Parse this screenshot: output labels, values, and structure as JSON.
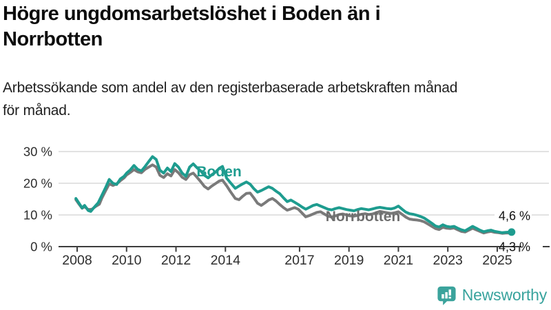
{
  "page": {
    "title_lines": [
      "Högre ungdomsarbetslöshet i Boden än i",
      "Norrbotten"
    ],
    "subtitle_lines": [
      "Arbetssökande som andel av den registerbaserade arbetskraften månad",
      "för månad."
    ]
  },
  "colors": {
    "boden": "#1e9c8f",
    "norrbotten": "#7a7a7a",
    "norrbotten_label": "#6e6e6e",
    "gridline": "#d9d9d9",
    "axis": "#3d3d3d",
    "annotation_text": "#111111",
    "brand_teal": "#38a39d"
  },
  "footer": {
    "brand": "Newsworthy",
    "logo_icon": "newsworthy-speech-bubble-chart-icon"
  },
  "chart_data": {
    "type": "line",
    "title": "Högre ungdomsarbetslöshet i Boden än i Norrbotten",
    "subtitle": "Arbetssökande som andel av den registerbaserade arbetskraften månad för månad.",
    "xlabel": "",
    "ylabel": "",
    "grid": "horizontal",
    "legend_position": "inline-labels",
    "xlim": [
      2007.25,
      2026.1
    ],
    "ylim": [
      0,
      32
    ],
    "y_ticks": [
      {
        "label": "0 %",
        "value": 0
      },
      {
        "label": "10 %",
        "value": 10
      },
      {
        "label": "20 %",
        "value": 20
      },
      {
        "label": "30 %",
        "value": 30
      }
    ],
    "x_ticks": [
      {
        "label": "2008",
        "year": 2008
      },
      {
        "label": "2010",
        "year": 2010
      },
      {
        "label": "2012",
        "year": 2012
      },
      {
        "label": "2014",
        "year": 2014
      },
      {
        "label": "2017",
        "year": 2017
      },
      {
        "label": "2019",
        "year": 2019
      },
      {
        "label": "2021",
        "year": 2021
      },
      {
        "label": "2023",
        "year": 2023
      },
      {
        "label": "2025",
        "year": 2025
      },
      {
        "label": "",
        "year": 2025.9
      }
    ],
    "series_labels": [
      {
        "text": "Boden",
        "series": "Boden"
      },
      {
        "text": "Norrbotten",
        "series": "Norrbotten"
      }
    ],
    "end_labels": [
      {
        "text": "4,6 %",
        "series": "Boden",
        "value": 4.6
      },
      {
        "text": "4,3 %",
        "series": "Norrbotten",
        "value": 4.3
      }
    ],
    "series": [
      {
        "name": "Norrbotten",
        "color": "#7a7a7a",
        "end_dot": false,
        "points": [
          [
            2007.95,
            14.8
          ],
          [
            2008.05,
            13.7
          ],
          [
            2008.2,
            12.1
          ],
          [
            2008.3,
            12.6
          ],
          [
            2008.45,
            11.7
          ],
          [
            2008.6,
            11.8
          ],
          [
            2008.75,
            12.7
          ],
          [
            2008.9,
            13.4
          ],
          [
            2009.0,
            15.3
          ],
          [
            2009.15,
            17.6
          ],
          [
            2009.3,
            19.8
          ],
          [
            2009.45,
            19.3
          ],
          [
            2009.6,
            19.8
          ],
          [
            2009.75,
            20.8
          ],
          [
            2009.9,
            21.7
          ],
          [
            2010.0,
            22.6
          ],
          [
            2010.15,
            23.4
          ],
          [
            2010.3,
            24.3
          ],
          [
            2010.45,
            23.6
          ],
          [
            2010.6,
            23.3
          ],
          [
            2010.75,
            24.4
          ],
          [
            2010.9,
            25.1
          ],
          [
            2011.05,
            25.8
          ],
          [
            2011.2,
            25.1
          ],
          [
            2011.35,
            22.5
          ],
          [
            2011.5,
            21.8
          ],
          [
            2011.65,
            23.0
          ],
          [
            2011.8,
            22.3
          ],
          [
            2011.95,
            24.3
          ],
          [
            2012.1,
            23.3
          ],
          [
            2012.25,
            21.9
          ],
          [
            2012.4,
            21.2
          ],
          [
            2012.55,
            22.7
          ],
          [
            2012.7,
            23.2
          ],
          [
            2012.85,
            21.9
          ],
          [
            2013.0,
            20.5
          ],
          [
            2013.15,
            19.0
          ],
          [
            2013.3,
            18.2
          ],
          [
            2013.45,
            19.1
          ],
          [
            2013.6,
            19.9
          ],
          [
            2013.75,
            20.7
          ],
          [
            2013.88,
            21.0
          ],
          [
            2014.05,
            19.2
          ],
          [
            2014.2,
            17.4
          ],
          [
            2014.4,
            15.2
          ],
          [
            2014.55,
            14.8
          ],
          [
            2014.7,
            15.9
          ],
          [
            2014.85,
            16.8
          ],
          [
            2015.0,
            16.9
          ],
          [
            2015.15,
            15.4
          ],
          [
            2015.3,
            13.7
          ],
          [
            2015.45,
            13.0
          ],
          [
            2015.6,
            13.8
          ],
          [
            2015.75,
            14.7
          ],
          [
            2015.9,
            15.2
          ],
          [
            2016.05,
            14.4
          ],
          [
            2016.2,
            13.3
          ],
          [
            2016.35,
            12.3
          ],
          [
            2016.5,
            11.5
          ],
          [
            2016.65,
            11.9
          ],
          [
            2016.8,
            12.3
          ],
          [
            2016.95,
            11.8
          ],
          [
            2017.1,
            10.6
          ],
          [
            2017.25,
            9.4
          ],
          [
            2017.4,
            9.8
          ],
          [
            2017.55,
            10.3
          ],
          [
            2017.7,
            10.8
          ],
          [
            2017.85,
            11.0
          ],
          [
            2018.0,
            10.3
          ],
          [
            2018.15,
            9.6
          ],
          [
            2018.3,
            9.3
          ],
          [
            2018.45,
            9.7
          ],
          [
            2018.6,
            10.1
          ],
          [
            2018.75,
            10.3
          ],
          [
            2018.9,
            10.0
          ],
          [
            2019.05,
            9.7
          ],
          [
            2019.2,
            9.6
          ],
          [
            2019.35,
            9.9
          ],
          [
            2019.5,
            10.2
          ],
          [
            2019.65,
            10.4
          ],
          [
            2019.8,
            10.1
          ],
          [
            2019.95,
            10.3
          ],
          [
            2020.1,
            10.7
          ],
          [
            2020.25,
            11.1
          ],
          [
            2020.4,
            10.9
          ],
          [
            2020.55,
            10.7
          ],
          [
            2020.7,
            10.5
          ],
          [
            2020.85,
            10.7
          ],
          [
            2021.0,
            11.0
          ],
          [
            2021.15,
            10.2
          ],
          [
            2021.3,
            9.3
          ],
          [
            2021.45,
            8.7
          ],
          [
            2021.6,
            8.5
          ],
          [
            2021.75,
            8.4
          ],
          [
            2021.9,
            8.2
          ],
          [
            2022.05,
            7.8
          ],
          [
            2022.2,
            7.1
          ],
          [
            2022.35,
            6.4
          ],
          [
            2022.5,
            5.7
          ],
          [
            2022.65,
            5.4
          ],
          [
            2022.8,
            6.1
          ],
          [
            2022.95,
            5.8
          ],
          [
            2023.1,
            5.7
          ],
          [
            2023.25,
            5.9
          ],
          [
            2023.4,
            5.3
          ],
          [
            2023.55,
            4.8
          ],
          [
            2023.7,
            4.6
          ],
          [
            2023.85,
            5.2
          ],
          [
            2024.0,
            5.8
          ],
          [
            2024.15,
            5.3
          ],
          [
            2024.3,
            4.8
          ],
          [
            2024.45,
            4.3
          ],
          [
            2024.6,
            4.6
          ],
          [
            2024.75,
            4.8
          ],
          [
            2024.9,
            4.5
          ],
          [
            2025.05,
            4.4
          ],
          [
            2025.2,
            4.2
          ],
          [
            2025.35,
            4.3
          ],
          [
            2025.58,
            4.3
          ]
        ]
      },
      {
        "name": "Boden",
        "color": "#1e9c8f",
        "end_dot": true,
        "points": [
          [
            2007.95,
            15.2
          ],
          [
            2008.05,
            14.0
          ],
          [
            2008.2,
            12.2
          ],
          [
            2008.3,
            13.0
          ],
          [
            2008.45,
            11.4
          ],
          [
            2008.55,
            11.1
          ],
          [
            2008.7,
            12.5
          ],
          [
            2008.85,
            13.8
          ],
          [
            2009.0,
            16.2
          ],
          [
            2009.15,
            18.6
          ],
          [
            2009.3,
            21.2
          ],
          [
            2009.45,
            20.0
          ],
          [
            2009.6,
            19.6
          ],
          [
            2009.75,
            21.4
          ],
          [
            2009.9,
            22.2
          ],
          [
            2010.0,
            23.2
          ],
          [
            2010.15,
            24.2
          ],
          [
            2010.3,
            25.6
          ],
          [
            2010.45,
            24.4
          ],
          [
            2010.6,
            23.9
          ],
          [
            2010.75,
            25.3
          ],
          [
            2010.9,
            26.9
          ],
          [
            2011.05,
            28.4
          ],
          [
            2011.2,
            27.5
          ],
          [
            2011.35,
            24.1
          ],
          [
            2011.5,
            23.2
          ],
          [
            2011.65,
            24.8
          ],
          [
            2011.8,
            23.7
          ],
          [
            2011.95,
            26.2
          ],
          [
            2012.1,
            25.1
          ],
          [
            2012.25,
            23.2
          ],
          [
            2012.4,
            22.2
          ],
          [
            2012.55,
            25.1
          ],
          [
            2012.7,
            26.1
          ],
          [
            2012.85,
            24.9
          ],
          [
            2013.0,
            23.9
          ],
          [
            2013.15,
            22.5
          ],
          [
            2013.3,
            21.7
          ],
          [
            2013.45,
            22.7
          ],
          [
            2013.6,
            23.5
          ],
          [
            2013.75,
            24.7
          ],
          [
            2013.88,
            25.3
          ],
          [
            2014.05,
            21.6
          ],
          [
            2014.2,
            20.2
          ],
          [
            2014.4,
            18.4
          ],
          [
            2014.55,
            19.1
          ],
          [
            2014.7,
            19.8
          ],
          [
            2014.85,
            20.4
          ],
          [
            2015.0,
            19.7
          ],
          [
            2015.15,
            18.3
          ],
          [
            2015.3,
            17.2
          ],
          [
            2015.45,
            17.7
          ],
          [
            2015.6,
            18.3
          ],
          [
            2015.75,
            18.9
          ],
          [
            2015.9,
            18.4
          ],
          [
            2016.05,
            17.5
          ],
          [
            2016.2,
            16.7
          ],
          [
            2016.35,
            15.4
          ],
          [
            2016.5,
            14.2
          ],
          [
            2016.65,
            14.7
          ],
          [
            2016.8,
            14.0
          ],
          [
            2016.95,
            13.3
          ],
          [
            2017.1,
            12.5
          ],
          [
            2017.25,
            11.8
          ],
          [
            2017.4,
            12.4
          ],
          [
            2017.55,
            13.0
          ],
          [
            2017.7,
            13.3
          ],
          [
            2017.85,
            12.8
          ],
          [
            2018.0,
            12.3
          ],
          [
            2018.15,
            11.8
          ],
          [
            2018.3,
            11.6
          ],
          [
            2018.45,
            12.0
          ],
          [
            2018.6,
            12.3
          ],
          [
            2018.75,
            12.0
          ],
          [
            2018.9,
            11.7
          ],
          [
            2019.05,
            11.5
          ],
          [
            2019.2,
            11.3
          ],
          [
            2019.35,
            11.7
          ],
          [
            2019.5,
            12.0
          ],
          [
            2019.65,
            11.8
          ],
          [
            2019.8,
            11.6
          ],
          [
            2019.95,
            11.9
          ],
          [
            2020.1,
            12.2
          ],
          [
            2020.25,
            12.4
          ],
          [
            2020.4,
            12.2
          ],
          [
            2020.55,
            12.0
          ],
          [
            2020.7,
            11.9
          ],
          [
            2020.85,
            12.2
          ],
          [
            2021.0,
            12.8
          ],
          [
            2021.15,
            11.8
          ],
          [
            2021.3,
            10.9
          ],
          [
            2021.45,
            10.4
          ],
          [
            2021.6,
            10.2
          ],
          [
            2021.75,
            9.9
          ],
          [
            2021.9,
            9.5
          ],
          [
            2022.05,
            9.0
          ],
          [
            2022.2,
            8.2
          ],
          [
            2022.35,
            7.4
          ],
          [
            2022.5,
            6.5
          ],
          [
            2022.65,
            6.2
          ],
          [
            2022.8,
            6.9
          ],
          [
            2022.95,
            6.4
          ],
          [
            2023.1,
            6.2
          ],
          [
            2023.25,
            6.4
          ],
          [
            2023.4,
            5.8
          ],
          [
            2023.55,
            5.3
          ],
          [
            2023.7,
            5.0
          ],
          [
            2023.85,
            5.7
          ],
          [
            2024.0,
            6.4
          ],
          [
            2024.15,
            5.8
          ],
          [
            2024.3,
            5.2
          ],
          [
            2024.45,
            4.7
          ],
          [
            2024.6,
            5.0
          ],
          [
            2024.75,
            5.2
          ],
          [
            2024.9,
            4.8
          ],
          [
            2025.05,
            4.6
          ],
          [
            2025.2,
            4.4
          ],
          [
            2025.35,
            4.5
          ],
          [
            2025.58,
            4.6
          ]
        ]
      }
    ]
  }
}
